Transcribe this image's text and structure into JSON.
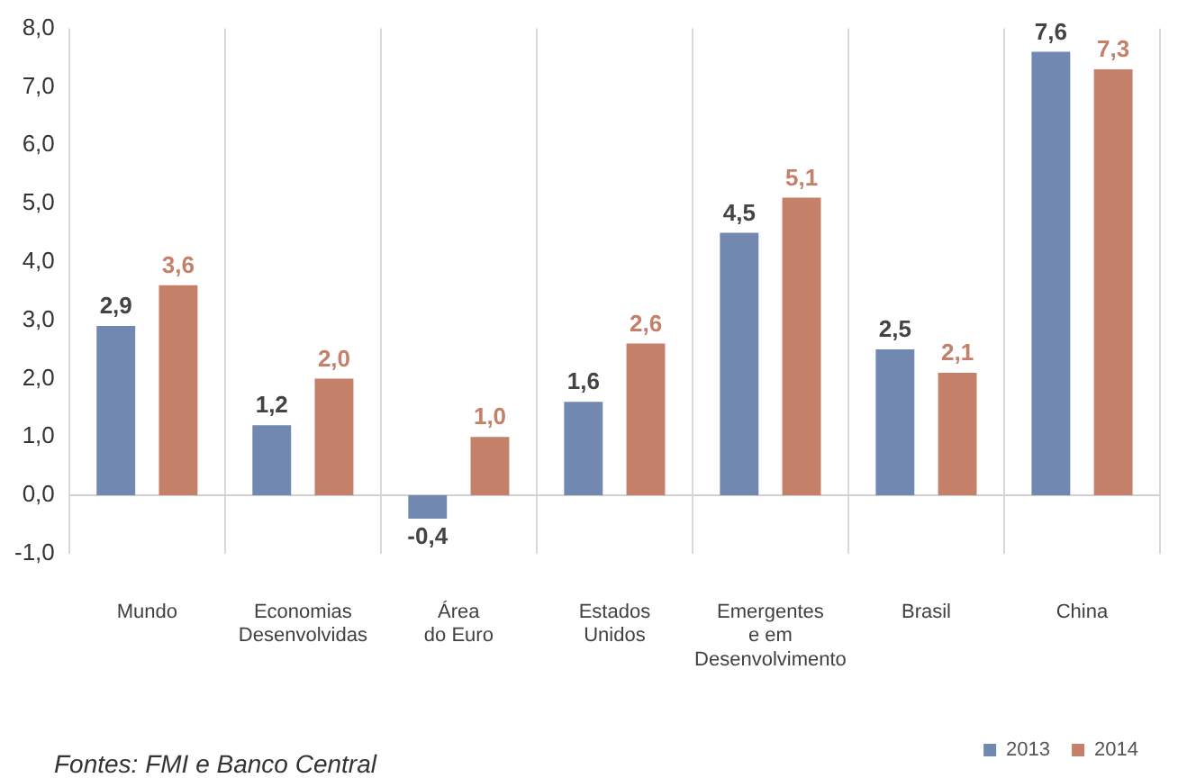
{
  "chart_data": {
    "type": "bar",
    "categories": [
      "Mundo",
      "Economias\nDesenvolvidas",
      "Área\ndo Euro",
      "Estados\nUnidos",
      "Emergentes\ne em\nDesenvolvimento",
      "Brasil",
      "China"
    ],
    "series": [
      {
        "name": "2013",
        "color": "#7189b0",
        "values": [
          2.9,
          1.2,
          -0.4,
          1.6,
          4.5,
          2.5,
          7.6
        ],
        "value_labels": [
          "2,9",
          "1,2",
          "-0,4",
          "1,6",
          "4,5",
          "2,5",
          "7,6"
        ]
      },
      {
        "name": "2014",
        "color": "#c5806a",
        "values": [
          3.6,
          2.0,
          1.0,
          2.6,
          5.1,
          2.1,
          7.3
        ],
        "value_labels": [
          "3,6",
          "2,0",
          "1,0",
          "2,6",
          "5,1",
          "2,1",
          "7,3"
        ]
      }
    ],
    "ylim": [
      -1,
      8
    ],
    "yticks": [
      {
        "value": 8,
        "label": "8,0"
      },
      {
        "value": 7,
        "label": "7,0"
      },
      {
        "value": 6,
        "label": "6,0"
      },
      {
        "value": 5,
        "label": "5,0"
      },
      {
        "value": 4,
        "label": "4,0"
      },
      {
        "value": 3,
        "label": "3,0"
      },
      {
        "value": 2,
        "label": "2,0"
      },
      {
        "value": 1,
        "label": "1,0"
      },
      {
        "value": 0,
        "label": "0,0"
      },
      {
        "value": -1,
        "label": "-1,0"
      }
    ],
    "grid": "x",
    "legend": "bottom right",
    "annotations": [
      "Fontes: FMI e Banco Central"
    ]
  }
}
